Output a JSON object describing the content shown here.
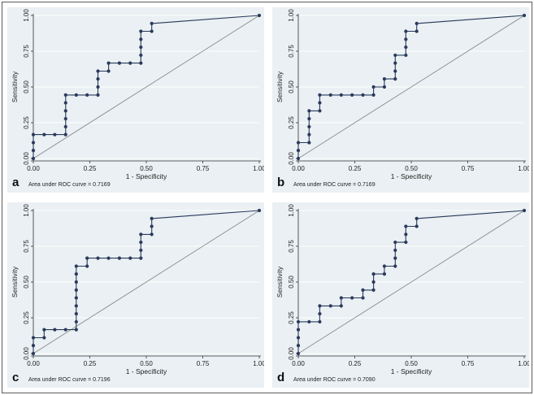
{
  "chart_data": [
    {
      "panel": "a",
      "type": "line",
      "xlabel": "1 - Specificity",
      "ylabel": "Sensitivity",
      "xlim": [
        0,
        1
      ],
      "ylim": [
        0,
        1
      ],
      "xticks": [
        "0.00",
        "0.25",
        "0.50",
        "0.75",
        "1.00"
      ],
      "yticks": [
        "0.00",
        "0.25",
        "0.50",
        "0.75",
        "1.00"
      ],
      "auc_text": "Area under ROC curve = 0.7169",
      "points": [
        [
          0,
          0
        ],
        [
          0,
          0.056
        ],
        [
          0,
          0.111
        ],
        [
          0,
          0.167
        ],
        [
          0.048,
          0.167
        ],
        [
          0.095,
          0.167
        ],
        [
          0.143,
          0.167
        ],
        [
          0.143,
          0.222
        ],
        [
          0.143,
          0.278
        ],
        [
          0.143,
          0.333
        ],
        [
          0.143,
          0.389
        ],
        [
          0.143,
          0.444
        ],
        [
          0.19,
          0.444
        ],
        [
          0.238,
          0.444
        ],
        [
          0.286,
          0.444
        ],
        [
          0.286,
          0.5
        ],
        [
          0.286,
          0.556
        ],
        [
          0.286,
          0.611
        ],
        [
          0.333,
          0.611
        ],
        [
          0.333,
          0.667
        ],
        [
          0.381,
          0.667
        ],
        [
          0.429,
          0.667
        ],
        [
          0.476,
          0.667
        ],
        [
          0.476,
          0.722
        ],
        [
          0.476,
          0.778
        ],
        [
          0.476,
          0.833
        ],
        [
          0.476,
          0.889
        ],
        [
          0.524,
          0.889
        ],
        [
          0.524,
          0.944
        ],
        [
          1,
          1
        ]
      ]
    },
    {
      "panel": "b",
      "type": "line",
      "xlabel": "1 - Specificity",
      "ylabel": "Sensitivity",
      "xlim": [
        0,
        1
      ],
      "ylim": [
        0,
        1
      ],
      "xticks": [
        "0.00",
        "0.25",
        "0.50",
        "0.75",
        "1.00"
      ],
      "yticks": [
        "0.00",
        "0.25",
        "0.50",
        "0.75",
        "1.00"
      ],
      "auc_text": "Area under ROC curve = 0.7169",
      "points": [
        [
          0,
          0
        ],
        [
          0,
          0.056
        ],
        [
          0,
          0.111
        ],
        [
          0.048,
          0.111
        ],
        [
          0.048,
          0.167
        ],
        [
          0.048,
          0.222
        ],
        [
          0.048,
          0.278
        ],
        [
          0.048,
          0.333
        ],
        [
          0.095,
          0.333
        ],
        [
          0.095,
          0.389
        ],
        [
          0.095,
          0.444
        ],
        [
          0.143,
          0.444
        ],
        [
          0.19,
          0.444
        ],
        [
          0.238,
          0.444
        ],
        [
          0.286,
          0.444
        ],
        [
          0.333,
          0.444
        ],
        [
          0.333,
          0.5
        ],
        [
          0.381,
          0.5
        ],
        [
          0.381,
          0.556
        ],
        [
          0.429,
          0.556
        ],
        [
          0.429,
          0.611
        ],
        [
          0.429,
          0.667
        ],
        [
          0.429,
          0.722
        ],
        [
          0.476,
          0.722
        ],
        [
          0.476,
          0.778
        ],
        [
          0.476,
          0.833
        ],
        [
          0.476,
          0.889
        ],
        [
          0.524,
          0.889
        ],
        [
          0.524,
          0.944
        ],
        [
          1,
          1
        ]
      ]
    },
    {
      "panel": "c",
      "type": "line",
      "xlabel": "1 - Specificity",
      "ylabel": "Sensitivity",
      "xlim": [
        0,
        1
      ],
      "ylim": [
        0,
        1
      ],
      "xticks": [
        "0.00",
        "0.25",
        "0.50",
        "0.75",
        "1.00"
      ],
      "yticks": [
        "0.00",
        "0.25",
        "0.50",
        "0.75",
        "1.00"
      ],
      "auc_text": "Area under ROC curve = 0.7196",
      "points": [
        [
          0,
          0
        ],
        [
          0,
          0.056
        ],
        [
          0,
          0.111
        ],
        [
          0.048,
          0.111
        ],
        [
          0.048,
          0.167
        ],
        [
          0.095,
          0.167
        ],
        [
          0.143,
          0.167
        ],
        [
          0.19,
          0.167
        ],
        [
          0.19,
          0.222
        ],
        [
          0.19,
          0.278
        ],
        [
          0.19,
          0.333
        ],
        [
          0.19,
          0.389
        ],
        [
          0.19,
          0.444
        ],
        [
          0.19,
          0.5
        ],
        [
          0.19,
          0.556
        ],
        [
          0.19,
          0.611
        ],
        [
          0.238,
          0.611
        ],
        [
          0.238,
          0.667
        ],
        [
          0.286,
          0.667
        ],
        [
          0.333,
          0.667
        ],
        [
          0.381,
          0.667
        ],
        [
          0.429,
          0.667
        ],
        [
          0.476,
          0.667
        ],
        [
          0.476,
          0.722
        ],
        [
          0.476,
          0.778
        ],
        [
          0.476,
          0.833
        ],
        [
          0.524,
          0.833
        ],
        [
          0.524,
          0.889
        ],
        [
          0.524,
          0.944
        ],
        [
          1,
          1
        ]
      ]
    },
    {
      "panel": "d",
      "type": "line",
      "xlabel": "1 - Specificity",
      "ylabel": "Sensitivity",
      "xlim": [
        0,
        1
      ],
      "ylim": [
        0,
        1
      ],
      "xticks": [
        "0.00",
        "0.25",
        "0.50",
        "0.75",
        "1.00"
      ],
      "yticks": [
        "0.00",
        "0.25",
        "0.50",
        "0.75",
        "1.00"
      ],
      "auc_text": "Area under ROC curve = 0.7090",
      "points": [
        [
          0,
          0
        ],
        [
          0,
          0.056
        ],
        [
          0,
          0.111
        ],
        [
          0,
          0.167
        ],
        [
          0,
          0.222
        ],
        [
          0.048,
          0.222
        ],
        [
          0.095,
          0.222
        ],
        [
          0.095,
          0.278
        ],
        [
          0.095,
          0.333
        ],
        [
          0.143,
          0.333
        ],
        [
          0.19,
          0.333
        ],
        [
          0.19,
          0.389
        ],
        [
          0.238,
          0.389
        ],
        [
          0.286,
          0.389
        ],
        [
          0.286,
          0.444
        ],
        [
          0.333,
          0.444
        ],
        [
          0.333,
          0.5
        ],
        [
          0.333,
          0.556
        ],
        [
          0.381,
          0.556
        ],
        [
          0.381,
          0.611
        ],
        [
          0.429,
          0.611
        ],
        [
          0.429,
          0.667
        ],
        [
          0.429,
          0.722
        ],
        [
          0.429,
          0.778
        ],
        [
          0.476,
          0.778
        ],
        [
          0.476,
          0.833
        ],
        [
          0.476,
          0.889
        ],
        [
          0.524,
          0.889
        ],
        [
          0.524,
          0.944
        ],
        [
          1,
          1
        ]
      ]
    }
  ],
  "style": {
    "curve_color": "#2a3a5c",
    "reference_line_color": "#8a8a8a",
    "grid_color": "#ffffff",
    "panel_background": "#eaf0f3"
  }
}
